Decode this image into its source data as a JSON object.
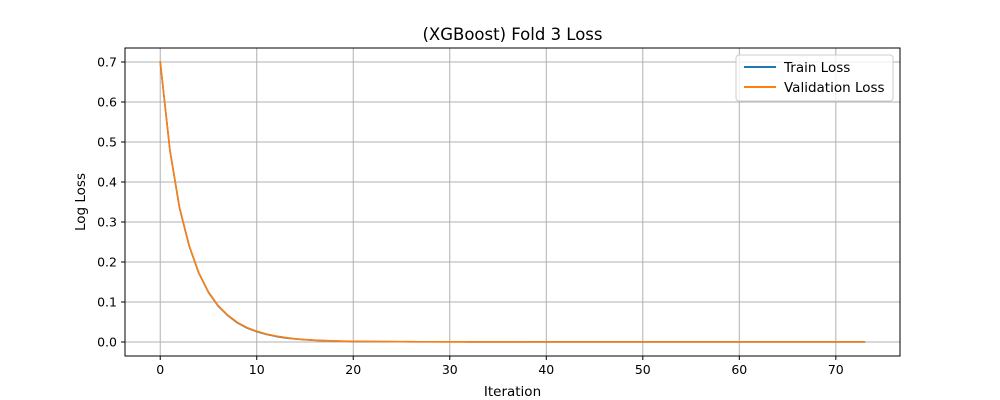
{
  "chart_data": {
    "type": "line",
    "title": "(XGBoost) Fold 3 Loss",
    "xlabel": "Iteration",
    "ylabel": "Log Loss",
    "xlim": [
      -3.65,
      76.65
    ],
    "ylim": [
      -0.035,
      0.735
    ],
    "xticks": [
      0,
      10,
      20,
      30,
      40,
      50,
      60,
      70
    ],
    "yticks": [
      0.0,
      0.1,
      0.2,
      0.3,
      0.4,
      0.5,
      0.6,
      0.7
    ],
    "ytick_labels": [
      "0.0",
      "0.1",
      "0.2",
      "0.3",
      "0.4",
      "0.5",
      "0.6",
      "0.7"
    ],
    "grid": true,
    "legend_position": "top-right",
    "x": [
      0,
      1,
      2,
      3,
      4,
      5,
      6,
      7,
      8,
      9,
      10,
      11,
      12,
      13,
      14,
      15,
      16,
      17,
      18,
      19,
      20,
      21,
      22,
      23,
      24,
      25,
      26,
      27,
      28,
      29,
      30,
      31,
      32,
      33,
      34,
      35,
      36,
      37,
      38,
      39,
      40,
      41,
      42,
      43,
      44,
      45,
      46,
      47,
      48,
      49,
      50,
      51,
      52,
      53,
      54,
      55,
      56,
      57,
      58,
      59,
      60,
      61,
      62,
      63,
      64,
      65,
      66,
      67,
      68,
      69,
      70,
      71,
      72,
      73
    ],
    "series": [
      {
        "name": "Train Loss",
        "color": "#1f77b4",
        "values": [
          0.7,
          0.48,
          0.335,
          0.24,
          0.172,
          0.124,
          0.09,
          0.066,
          0.048,
          0.035,
          0.026,
          0.019,
          0.014,
          0.01,
          0.0075,
          0.0056,
          0.0042,
          0.0032,
          0.0025,
          0.0019,
          0.0015,
          0.0012,
          0.001,
          0.0008,
          0.0007,
          0.0006,
          0.0005,
          0.0004,
          0.0004,
          0.0003,
          0.0003,
          0.0003,
          0.0002,
          0.0002,
          0.0002,
          0.0002,
          0.0002,
          0.0002,
          0.0002,
          0.0001,
          0.0001,
          0.0001,
          0.0001,
          0.0001,
          0.0001,
          0.0001,
          0.0001,
          0.0001,
          0.0001,
          0.0001,
          0.0001,
          0.0001,
          0.0001,
          0.0001,
          0.0001,
          0.0001,
          0.0001,
          0.0001,
          0.0001,
          0.0001,
          0.0001,
          0.0001,
          0.0001,
          0.0001,
          0.0001,
          0.0001,
          0.0001,
          0.0001,
          0.0001,
          0.0001,
          0.0001,
          0.0001,
          0.0001,
          0.0001
        ]
      },
      {
        "name": "Validation Loss",
        "color": "#ff7f0e",
        "values": [
          0.701,
          0.481,
          0.336,
          0.241,
          0.173,
          0.125,
          0.091,
          0.067,
          0.049,
          0.036,
          0.027,
          0.02,
          0.015,
          0.011,
          0.008,
          0.006,
          0.0045,
          0.0035,
          0.0027,
          0.0021,
          0.0017,
          0.0014,
          0.0012,
          0.001,
          0.0009,
          0.0008,
          0.0007,
          0.0006,
          0.0006,
          0.0005,
          0.0005,
          0.0005,
          0.0004,
          0.0004,
          0.0004,
          0.0004,
          0.0004,
          0.0004,
          0.0003,
          0.0003,
          0.0003,
          0.0003,
          0.0003,
          0.0003,
          0.0003,
          0.0003,
          0.0003,
          0.0003,
          0.0003,
          0.0003,
          0.0003,
          0.0003,
          0.0003,
          0.0003,
          0.0003,
          0.0003,
          0.0003,
          0.0003,
          0.0003,
          0.0003,
          0.0003,
          0.0003,
          0.0003,
          0.0003,
          0.0003,
          0.0003,
          0.0003,
          0.0003,
          0.0003,
          0.0003,
          0.0003,
          0.0003,
          0.0003,
          0.0003
        ]
      }
    ]
  }
}
